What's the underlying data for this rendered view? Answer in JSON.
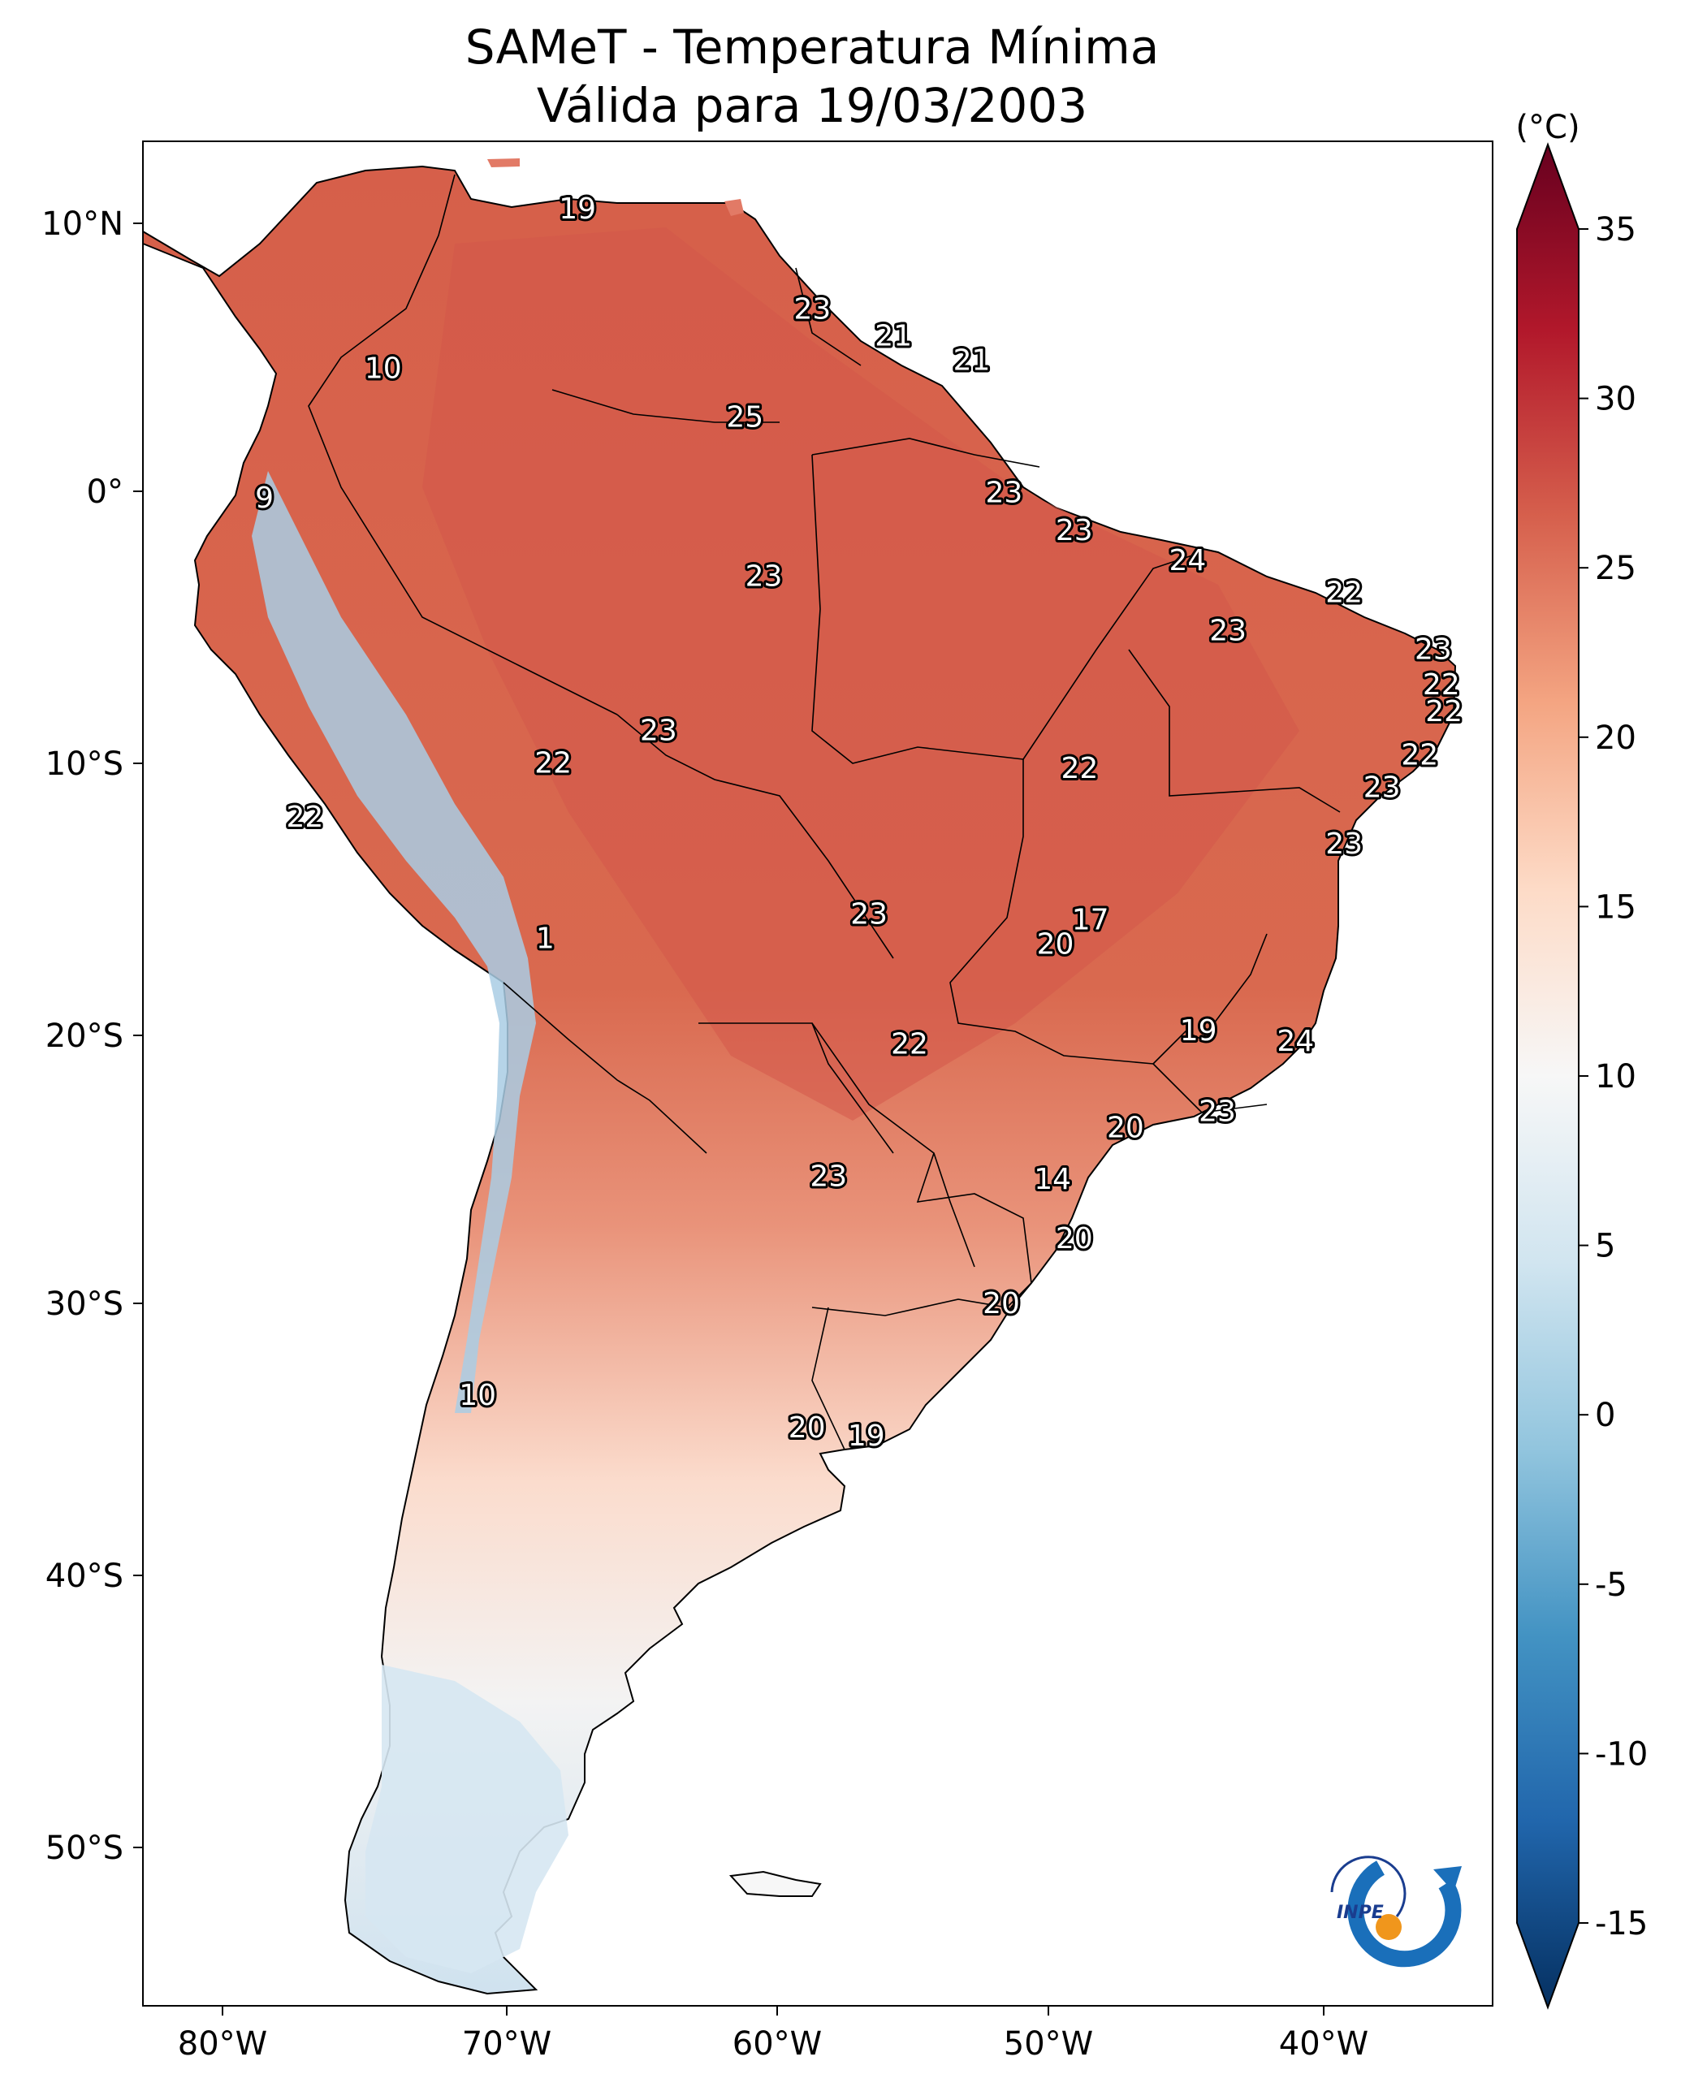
{
  "title": {
    "line1": "SAMeT - Temperatura Mínima",
    "line2": "Válida para 19/03/2003"
  },
  "map": {
    "lon_ticks": [
      "80°W",
      "70°W",
      "60°W",
      "50°W",
      "40°W"
    ],
    "lat_ticks": [
      "10°N",
      "0°",
      "10°S",
      "20°S",
      "30°S",
      "40°S",
      "50°S"
    ],
    "extent": {
      "lon_min": -83,
      "lon_max": -33,
      "lat_min": -56,
      "lat_max": 13
    }
  },
  "colorbar": {
    "unit": "(°C)",
    "ticks": [
      "35",
      "30",
      "25",
      "20",
      "15",
      "10",
      "5",
      "0",
      "-5",
      "-10",
      "-15"
    ],
    "colors": [
      "#67001f",
      "#b2182b",
      "#d6604d",
      "#f4a582",
      "#fddbc7",
      "#f7f7f7",
      "#d1e5f0",
      "#92c5de",
      "#4393c3",
      "#2166ac",
      "#053061"
    ]
  },
  "stations": [
    {
      "value": "19",
      "lon": -66.9,
      "lat": 10.5
    },
    {
      "value": "23",
      "lon": -58.2,
      "lat": 6.8
    },
    {
      "value": "21",
      "lon": -55.2,
      "lat": 5.8
    },
    {
      "value": "21",
      "lon": -52.3,
      "lat": 4.9
    },
    {
      "value": "10",
      "lon": -74.1,
      "lat": 4.6
    },
    {
      "value": "25",
      "lon": -60.7,
      "lat": 2.8
    },
    {
      "value": "9",
      "lon": -78.5,
      "lat": -0.2
    },
    {
      "value": "23",
      "lon": -51.1,
      "lat": 0.0
    },
    {
      "value": "23",
      "lon": -48.5,
      "lat": -1.4
    },
    {
      "value": "24",
      "lon": -44.3,
      "lat": -2.5
    },
    {
      "value": "23",
      "lon": -60.0,
      "lat": -3.1
    },
    {
      "value": "22",
      "lon": -38.5,
      "lat": -3.7
    },
    {
      "value": "23",
      "lon": -42.8,
      "lat": -5.1
    },
    {
      "value": "23",
      "lon": -35.2,
      "lat": -5.8
    },
    {
      "value": "22",
      "lon": -34.9,
      "lat": -7.1
    },
    {
      "value": "22",
      "lon": -34.8,
      "lat": -8.1
    },
    {
      "value": "23",
      "lon": -63.9,
      "lat": -8.8
    },
    {
      "value": "22",
      "lon": -35.7,
      "lat": -9.7
    },
    {
      "value": "22",
      "lon": -67.8,
      "lat": -10.0
    },
    {
      "value": "22",
      "lon": -48.3,
      "lat": -10.2
    },
    {
      "value": "23",
      "lon": -37.1,
      "lat": -10.9
    },
    {
      "value": "22",
      "lon": -77.0,
      "lat": -12.0
    },
    {
      "value": "23",
      "lon": -38.5,
      "lat": -13.0
    },
    {
      "value": "23",
      "lon": -56.1,
      "lat": -15.6
    },
    {
      "value": "17",
      "lon": -47.9,
      "lat": -15.8
    },
    {
      "value": "1",
      "lon": -68.1,
      "lat": -16.5
    },
    {
      "value": "20",
      "lon": -49.2,
      "lat": -16.7
    },
    {
      "value": "19",
      "lon": -43.9,
      "lat": -19.9
    },
    {
      "value": "24",
      "lon": -40.3,
      "lat": -20.3
    },
    {
      "value": "22",
      "lon": -54.6,
      "lat": -20.4
    },
    {
      "value": "23",
      "lon": -43.2,
      "lat": -22.9
    },
    {
      "value": "20",
      "lon": -46.6,
      "lat": -23.5
    },
    {
      "value": "23",
      "lon": -57.6,
      "lat": -25.3
    },
    {
      "value": "14",
      "lon": -49.3,
      "lat": -25.4
    },
    {
      "value": "20",
      "lon": -48.5,
      "lat": -27.6
    },
    {
      "value": "20",
      "lon": -51.2,
      "lat": -30.0
    },
    {
      "value": "10",
      "lon": -70.6,
      "lat": -33.4
    },
    {
      "value": "20",
      "lon": -58.4,
      "lat": -34.6
    },
    {
      "value": "19",
      "lon": -56.2,
      "lat": -34.9
    }
  ],
  "logo": {
    "text": "INPE"
  }
}
